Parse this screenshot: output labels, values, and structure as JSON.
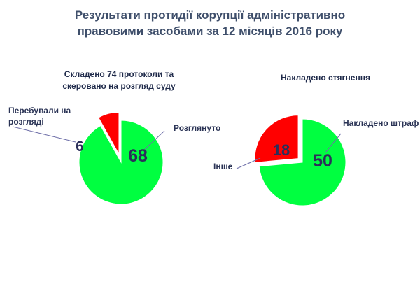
{
  "title_line1": "Результати протидії корупції адміністративно",
  "title_line2": "правовими засобами за 12 місяців 2016 року",
  "chart_data": [
    {
      "type": "pie",
      "title_line1": "Складено 74 протоколи та",
      "title_line2": "скеровано на розгляд суду",
      "slices": [
        {
          "label": "Розглянуто",
          "value": 68,
          "color": "#00ff40"
        },
        {
          "label_line1": "Перебували на",
          "label_line2": "розгляді",
          "value": 6,
          "color": "#ff0000"
        }
      ]
    },
    {
      "type": "pie",
      "title": "Накладено стягнення",
      "slices": [
        {
          "label": "Накладено штраф",
          "value": 50,
          "color": "#00ff40"
        },
        {
          "label": "Інше",
          "value": 18,
          "color": "#ff0000"
        }
      ]
    }
  ]
}
